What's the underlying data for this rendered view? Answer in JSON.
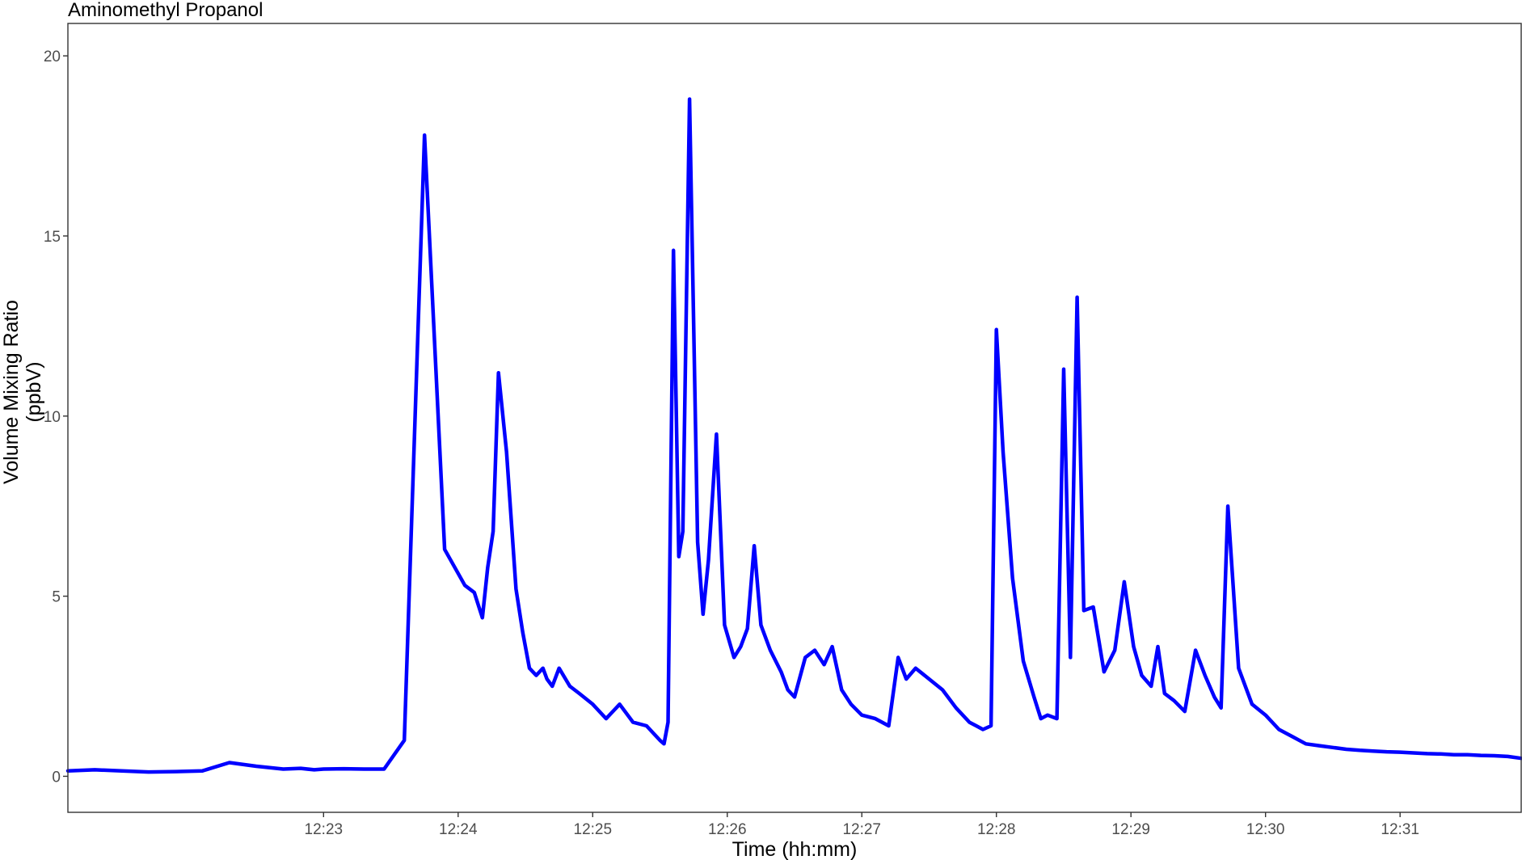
{
  "chart_data": {
    "type": "line",
    "title": "Aminomethyl Propanol",
    "xlabel": "Time (hh:mm)",
    "ylabel": "Volume Mixing Ratio (ppbV)",
    "ylabel_lines": [
      "Volume Mixing Ratio",
      "(ppbV)"
    ],
    "x_unit": "minutes past 12:00",
    "xlim": [
      21.1,
      31.9
    ],
    "ylim": [
      -1,
      20.9
    ],
    "x_ticks": [
      23,
      24,
      25,
      26,
      27,
      28,
      29,
      30,
      31
    ],
    "x_tick_labels": [
      "12:23",
      "12:24",
      "12:25",
      "12:26",
      "12:27",
      "12:28",
      "12:29",
      "12:30",
      "12:31"
    ],
    "y_ticks": [
      0,
      5,
      10,
      15,
      20
    ],
    "y_tick_labels": [
      "0",
      "5",
      "10",
      "15",
      "20"
    ],
    "grid": false,
    "legend": "none",
    "line_color": "#0000ff",
    "series": [
      {
        "x": [
          21.1,
          21.3,
          21.5,
          21.7,
          21.9,
          22.1,
          22.3,
          22.5,
          22.7,
          22.83,
          22.93,
          23.0,
          23.15,
          23.3,
          23.45,
          23.6,
          23.75,
          23.9,
          24.05,
          24.12,
          24.18,
          24.22,
          24.26,
          24.3,
          24.36,
          24.43,
          24.48,
          24.53,
          24.58,
          24.63,
          24.66,
          24.7,
          24.75,
          24.83,
          24.9,
          25.0,
          25.1,
          25.2,
          25.3,
          25.4,
          25.45,
          25.5,
          25.53,
          25.56,
          25.6,
          25.64,
          25.67,
          25.72,
          25.78,
          25.82,
          25.86,
          25.92,
          25.98,
          26.05,
          26.1,
          26.15,
          26.2,
          26.25,
          26.32,
          26.4,
          26.45,
          26.5,
          26.58,
          26.65,
          26.72,
          26.78,
          26.85,
          26.92,
          27.0,
          27.1,
          27.2,
          27.27,
          27.33,
          27.4,
          27.5,
          27.6,
          27.7,
          27.8,
          27.85,
          27.9,
          27.96,
          28.0,
          28.05,
          28.12,
          28.2,
          28.28,
          28.33,
          28.38,
          28.45,
          28.5,
          28.55,
          28.6,
          28.65,
          28.72,
          28.8,
          28.88,
          28.95,
          29.02,
          29.08,
          29.15,
          29.2,
          29.25,
          29.32,
          29.4,
          29.48,
          29.55,
          29.62,
          29.67,
          29.72,
          29.8,
          29.9,
          30.0,
          30.1,
          30.2,
          30.3,
          30.4,
          30.5,
          30.6,
          30.7,
          30.8,
          30.9,
          31.0,
          31.1,
          31.2,
          31.3,
          31.4,
          31.5,
          31.6,
          31.7,
          31.8,
          31.9
        ],
        "y": [
          0.15,
          0.18,
          0.15,
          0.12,
          0.13,
          0.15,
          0.38,
          0.28,
          0.2,
          0.22,
          0.18,
          0.2,
          0.21,
          0.2,
          0.2,
          1.0,
          17.8,
          6.3,
          5.3,
          5.1,
          4.4,
          5.8,
          6.8,
          11.2,
          9.0,
          5.2,
          4.0,
          3.0,
          2.8,
          3.0,
          2.7,
          2.5,
          3.0,
          2.5,
          2.3,
          2.0,
          1.6,
          2.0,
          1.5,
          1.4,
          1.2,
          1.0,
          0.9,
          1.5,
          14.6,
          6.1,
          6.8,
          18.8,
          6.5,
          4.5,
          6.0,
          9.5,
          4.2,
          3.3,
          3.6,
          4.1,
          6.4,
          4.2,
          3.5,
          2.9,
          2.4,
          2.2,
          3.3,
          3.5,
          3.1,
          3.6,
          2.4,
          2.0,
          1.7,
          1.6,
          1.4,
          3.3,
          2.7,
          3.0,
          2.7,
          2.4,
          1.9,
          1.5,
          1.4,
          1.3,
          1.4,
          12.4,
          9.0,
          5.5,
          3.2,
          2.2,
          1.6,
          1.7,
          1.6,
          11.3,
          3.3,
          13.3,
          4.6,
          4.7,
          2.9,
          3.5,
          5.4,
          3.6,
          2.8,
          2.5,
          3.6,
          2.3,
          2.1,
          1.8,
          3.5,
          2.8,
          2.2,
          1.9,
          7.5,
          3.0,
          2.0,
          1.7,
          1.3,
          1.1,
          0.9,
          0.85,
          0.8,
          0.75,
          0.72,
          0.7,
          0.68,
          0.67,
          0.65,
          0.63,
          0.62,
          0.6,
          0.6,
          0.58,
          0.57,
          0.55,
          0.5
        ]
      }
    ]
  }
}
